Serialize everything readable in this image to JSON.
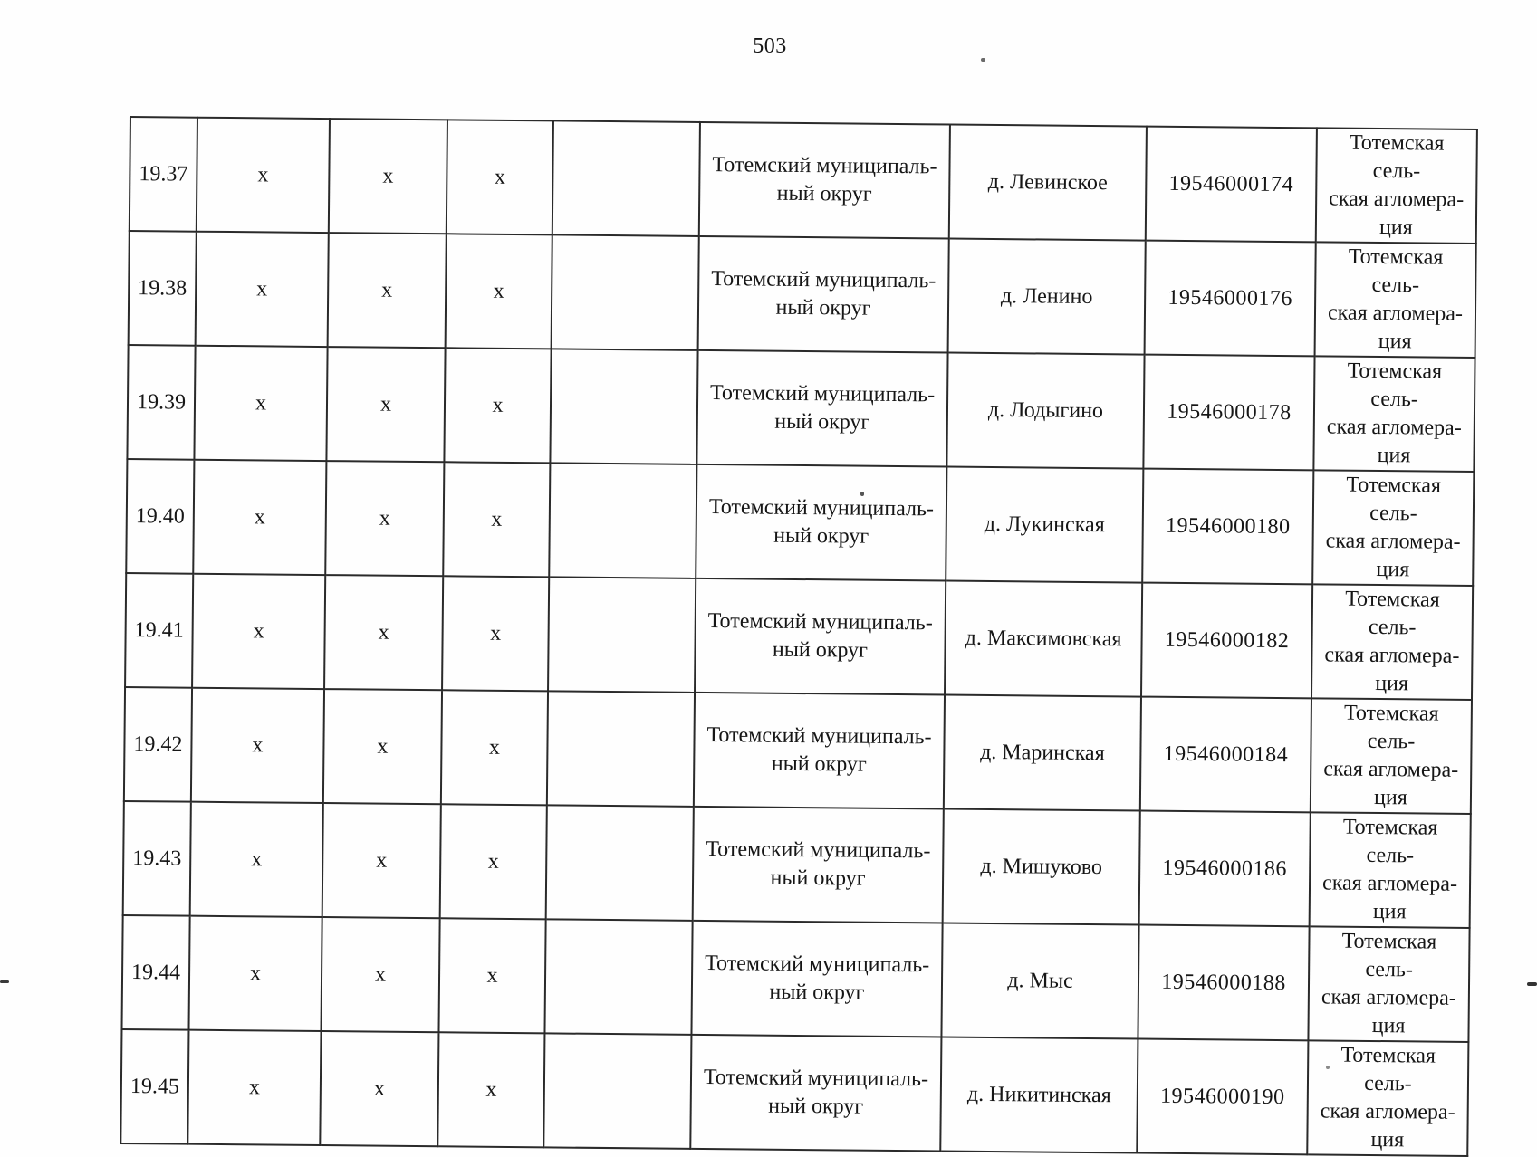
{
  "page": {
    "number": "503"
  },
  "table": {
    "rows": [
      {
        "num": "19.37",
        "marks": [
          "х",
          "х",
          "х"
        ],
        "empty": "",
        "municipality": "Тотемский муниципаль-\nный округ",
        "settlement": "д. Левинское",
        "code": "19546000174",
        "agglomeration": "Тотемская сель-\nская агломера-\nция"
      },
      {
        "num": "19.38",
        "marks": [
          "х",
          "х",
          "х"
        ],
        "empty": "",
        "municipality": "Тотемский муниципаль-\nный округ",
        "settlement": "д. Ленино",
        "code": "19546000176",
        "agglomeration": "Тотемская сель-\nская агломера-\nция"
      },
      {
        "num": "19.39",
        "marks": [
          "х",
          "х",
          "х"
        ],
        "empty": "",
        "municipality": "Тотемский муниципаль-\nный округ",
        "settlement": "д. Лодыгино",
        "code": "19546000178",
        "agglomeration": "Тотемская сель-\nская агломера-\nция"
      },
      {
        "num": "19.40",
        "marks": [
          "х",
          "х",
          "х"
        ],
        "empty": "",
        "municipality": "Тотемский муниципаль-\nный округ",
        "settlement": "д. Лукинская",
        "code": "19546000180",
        "agglomeration": "Тотемская сель-\nская агломера-\nция"
      },
      {
        "num": "19.41",
        "marks": [
          "х",
          "х",
          "х"
        ],
        "empty": "",
        "municipality": "Тотемский муниципаль-\nный округ",
        "settlement": "д. Максимовская",
        "code": "19546000182",
        "agglomeration": "Тотемская сель-\nская агломера-\nция"
      },
      {
        "num": "19.42",
        "marks": [
          "х",
          "х",
          "х"
        ],
        "empty": "",
        "municipality": "Тотемский муниципаль-\nный округ",
        "settlement": "д. Маринская",
        "code": "19546000184",
        "agglomeration": "Тотемская сель-\nская агломера-\nция"
      },
      {
        "num": "19.43",
        "marks": [
          "х",
          "х",
          "х"
        ],
        "empty": "",
        "municipality": "Тотемский муниципаль-\nный округ",
        "settlement": "д. Мишуково",
        "code": "19546000186",
        "agglomeration": "Тотемская сель-\nская агломера-\nция"
      },
      {
        "num": "19.44",
        "marks": [
          "х",
          "х",
          "х"
        ],
        "empty": "",
        "municipality": "Тотемский муниципаль-\nный округ",
        "settlement": "д. Мыс",
        "code": "19546000188",
        "agglomeration": "Тотемская сель-\nская агломера-\nция"
      },
      {
        "num": "19.45",
        "marks": [
          "х",
          "х",
          "х"
        ],
        "empty": "",
        "municipality": "Тотемский муниципаль-\nный округ",
        "settlement": "д. Никитинская",
        "code": "19546000190",
        "agglomeration": "Тотемская сель-\nская агломера-\nция"
      }
    ]
  }
}
